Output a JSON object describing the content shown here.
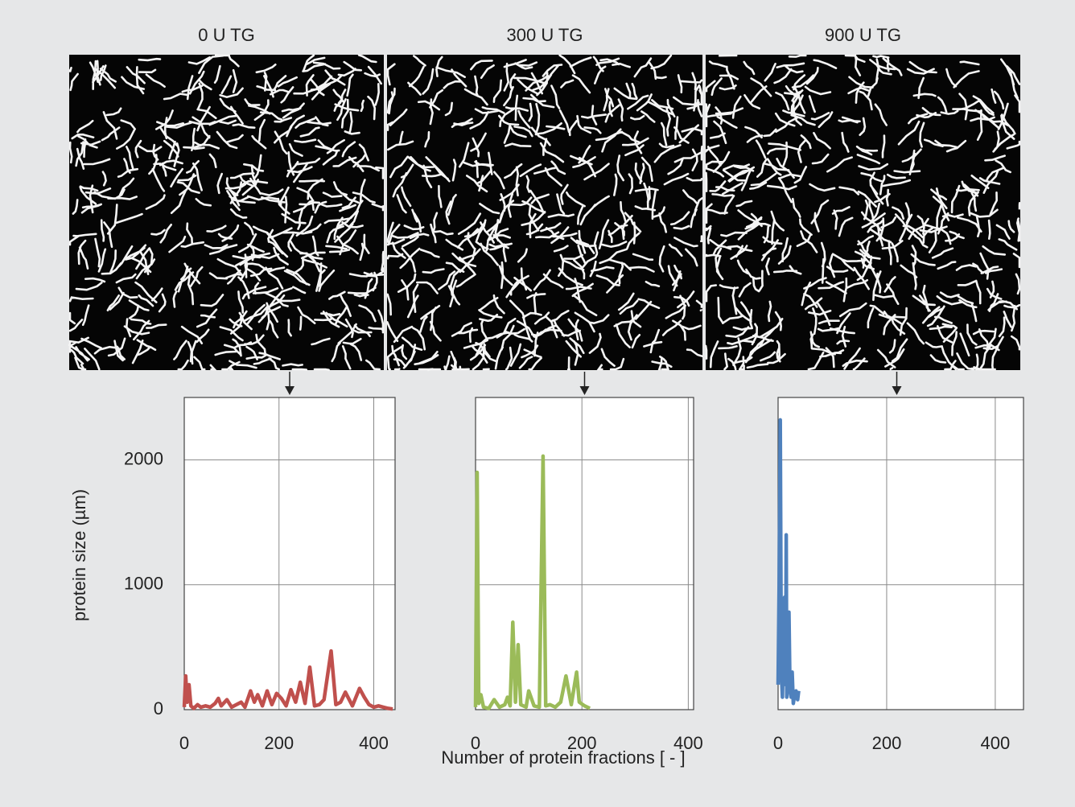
{
  "chart_data": [
    {
      "type": "line",
      "title": "0 U TG",
      "color": "#c0504d",
      "x": [
        0,
        3,
        6,
        10,
        14,
        20,
        28,
        35,
        45,
        55,
        65,
        72,
        78,
        90,
        100,
        110,
        120,
        128,
        140,
        148,
        155,
        165,
        175,
        185,
        195,
        205,
        215,
        225,
        235,
        245,
        255,
        265,
        275,
        285,
        295,
        310,
        320,
        330,
        340,
        355,
        370,
        380,
        390,
        400,
        410,
        420,
        430,
        440
      ],
      "values": [
        20,
        270,
        60,
        200,
        30,
        10,
        40,
        20,
        30,
        20,
        50,
        90,
        30,
        80,
        20,
        40,
        60,
        20,
        150,
        60,
        120,
        30,
        150,
        40,
        130,
        90,
        30,
        160,
        60,
        220,
        50,
        340,
        30,
        40,
        80,
        470,
        40,
        60,
        140,
        30,
        170,
        100,
        40,
        20,
        30,
        20,
        10,
        5
      ],
      "xlim": [
        0,
        445
      ],
      "ylim": [
        0,
        2500
      ],
      "xticks": [
        0,
        200,
        400
      ],
      "yticks": [
        0,
        1000,
        2000
      ],
      "grid": true,
      "ytick_labels": true
    },
    {
      "type": "line",
      "title": "300 U TG",
      "color": "#9bbb59",
      "x": [
        0,
        3,
        6,
        10,
        15,
        25,
        35,
        45,
        55,
        60,
        65,
        70,
        75,
        80,
        85,
        95,
        100,
        110,
        120,
        127,
        132,
        140,
        150,
        160,
        170,
        180,
        190,
        195,
        205,
        215
      ],
      "values": [
        20,
        1900,
        50,
        120,
        20,
        10,
        80,
        20,
        40,
        100,
        30,
        700,
        60,
        520,
        40,
        20,
        150,
        30,
        20,
        2030,
        30,
        40,
        20,
        60,
        270,
        40,
        300,
        60,
        30,
        10
      ],
      "xlim": [
        0,
        410
      ],
      "ylim": [
        0,
        2500
      ],
      "xticks": [
        0,
        200,
        400
      ],
      "yticks": [
        0,
        1000,
        2000
      ],
      "grid": true,
      "ytick_labels": false
    },
    {
      "type": "line",
      "title": "900 U TG",
      "color": "#4f81bd",
      "x": [
        0,
        2,
        4,
        6,
        8,
        10,
        12,
        14,
        15,
        16,
        18,
        20,
        22,
        24,
        26,
        28,
        30,
        33,
        36,
        38
      ],
      "values": [
        200,
        1000,
        2320,
        300,
        100,
        500,
        900,
        200,
        1400,
        100,
        700,
        780,
        150,
        100,
        300,
        50,
        100,
        150,
        80,
        150
      ],
      "xlim": [
        0,
        452
      ],
      "ylim": [
        0,
        2500
      ],
      "xticks": [
        0,
        200,
        400
      ],
      "yticks": [
        0,
        1000,
        2000
      ],
      "grid": true,
      "ytick_labels": false
    }
  ],
  "ylabel": "protein size (µm)",
  "xlabel": "Number of protein fractions [ - ]"
}
